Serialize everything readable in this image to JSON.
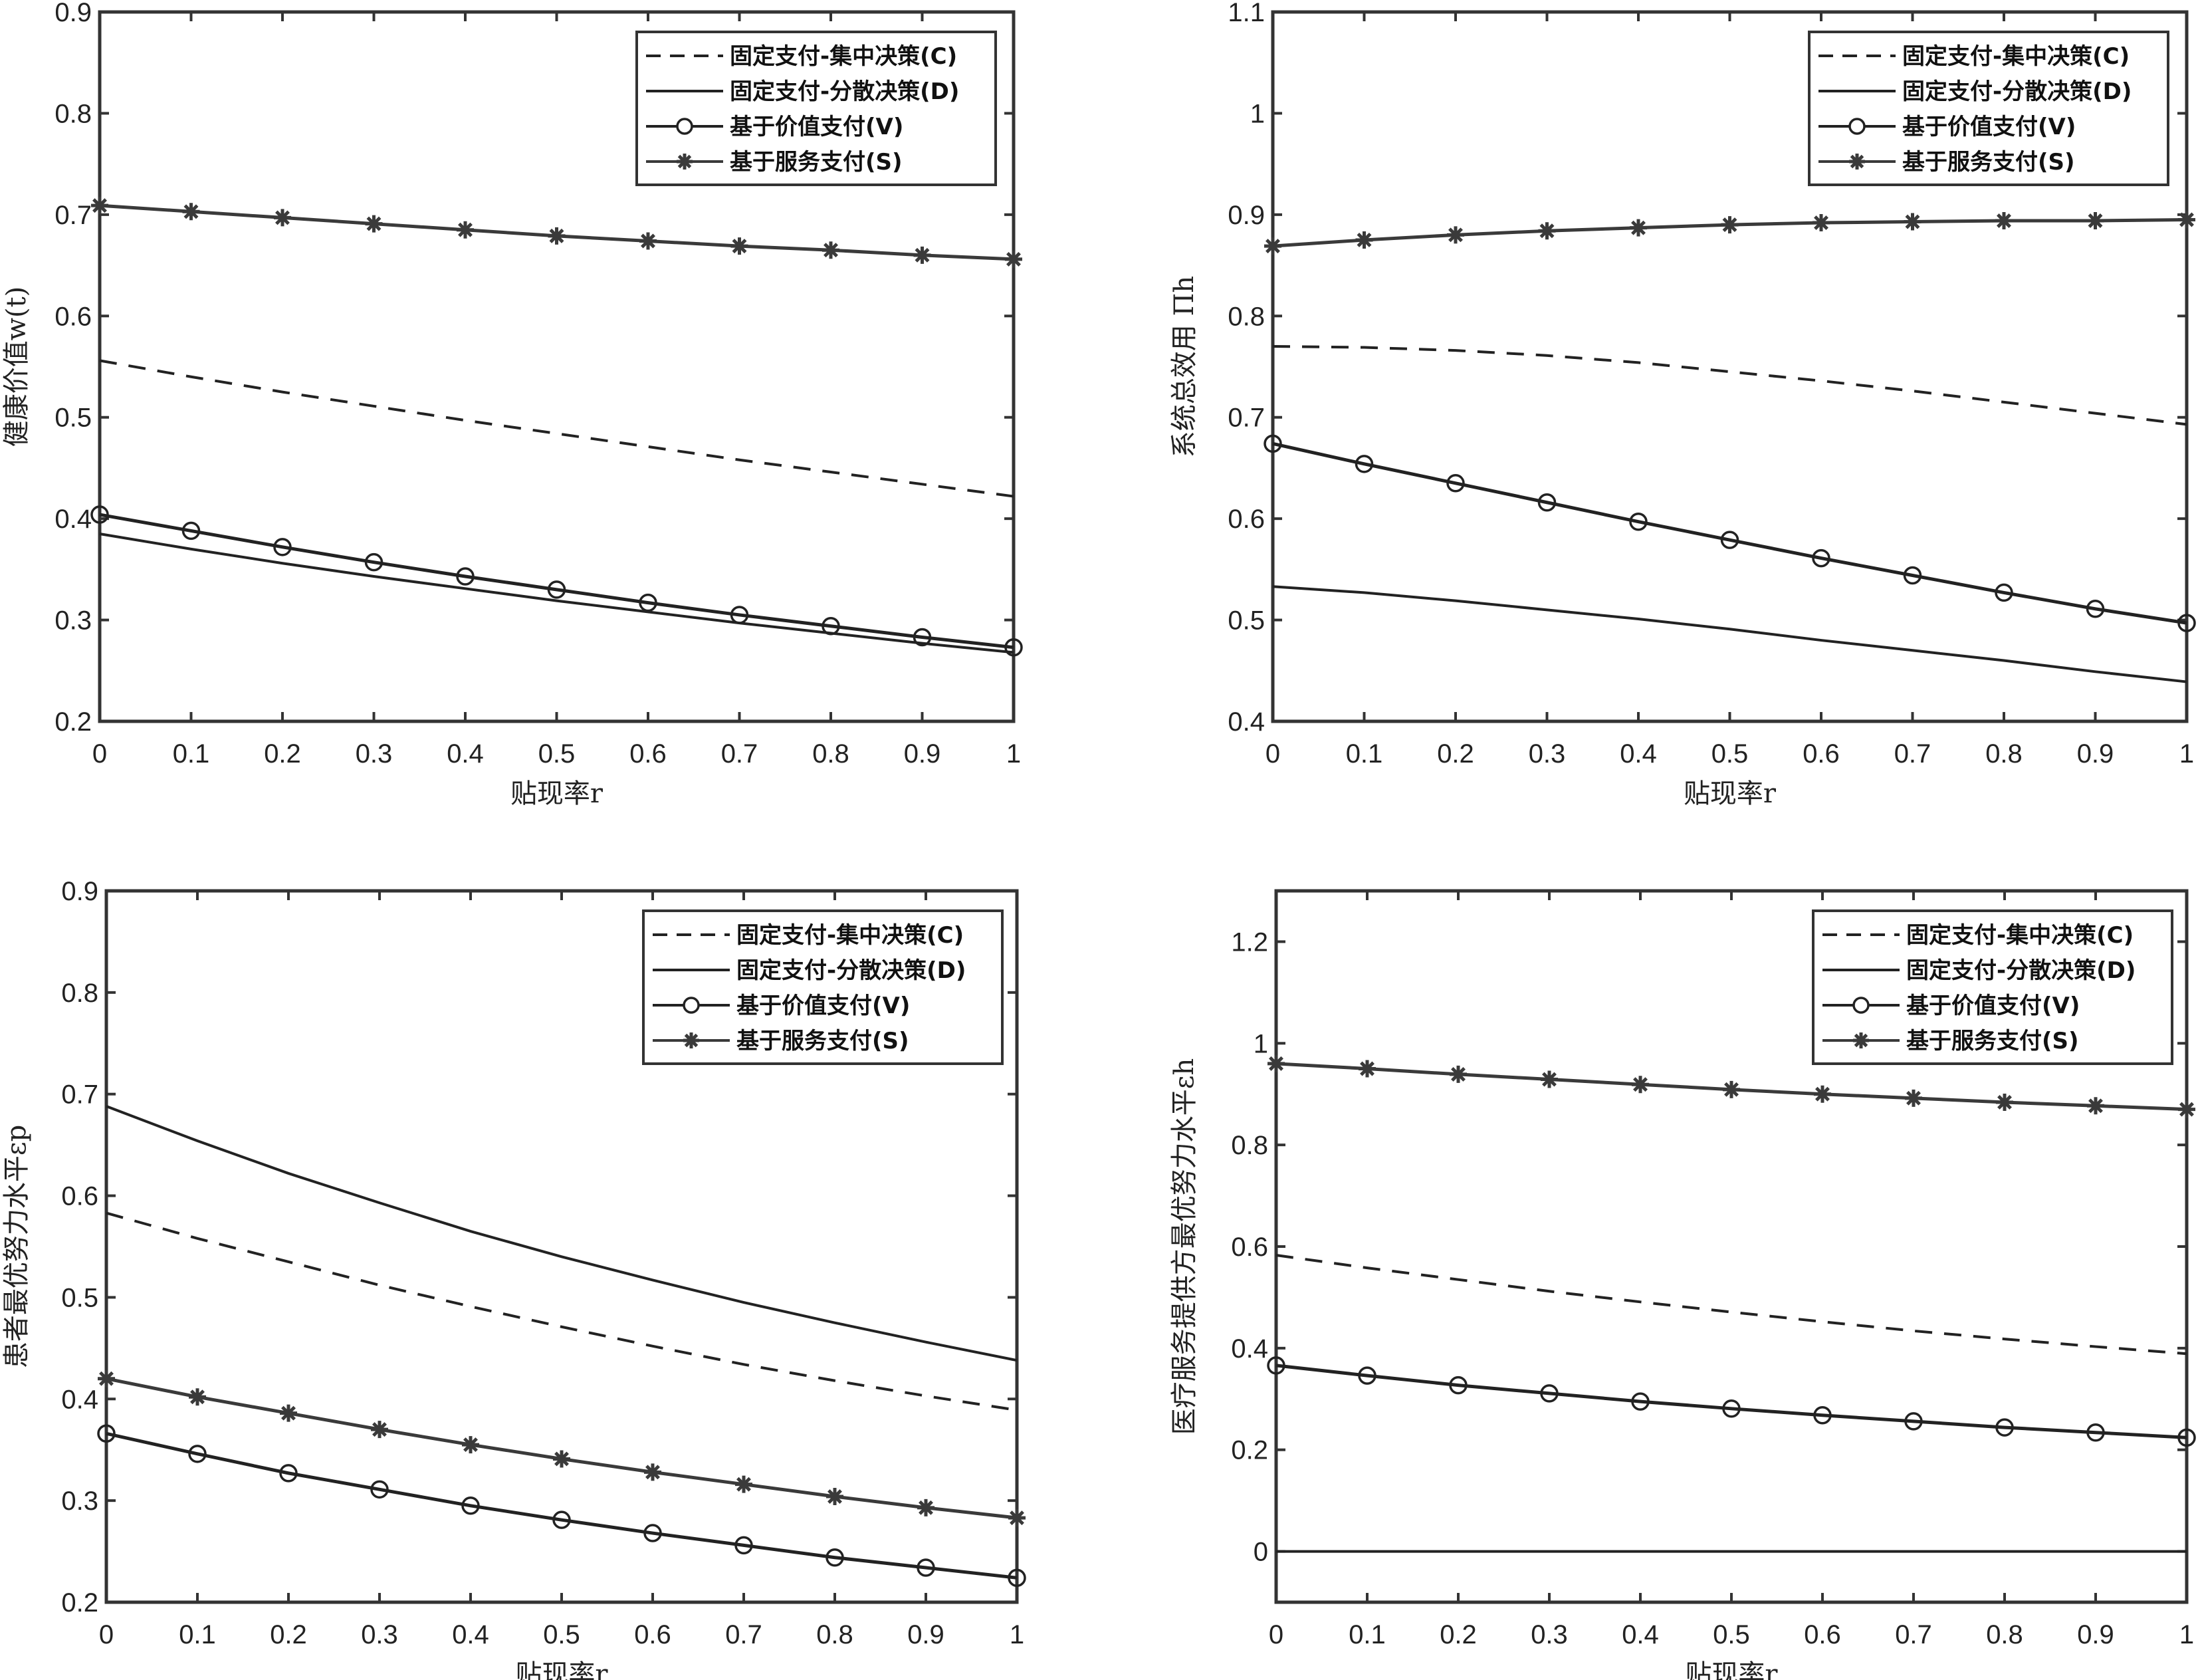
{
  "legend": [
    {
      "key": "C",
      "label": "固定支付-集中决策(C)",
      "style": "dashed",
      "marker": "none"
    },
    {
      "key": "D",
      "label": "固定支付-分散决策(D)",
      "style": "solid",
      "marker": "none"
    },
    {
      "key": "V",
      "label": "基于价值支付(V)",
      "style": "solid",
      "marker": "circle"
    },
    {
      "key": "S",
      "label": "基于服务支付(S)",
      "style": "solid",
      "marker": "star"
    }
  ],
  "colors": {
    "line": "#222222",
    "series_S": "#3a3a3a",
    "axis": "#333333"
  },
  "chart_data": [
    {
      "type": "line",
      "xlabel": "贴现率r",
      "ylabel": "健康价值w(t)",
      "x": [
        0,
        0.1,
        0.2,
        0.3,
        0.4,
        0.5,
        0.6,
        0.7,
        0.8,
        0.9,
        1
      ],
      "xticks": [
        "0",
        "0.1",
        "0.2",
        "0.3",
        "0.4",
        "0.5",
        "0.6",
        "0.7",
        "0.8",
        "0.9",
        "1"
      ],
      "ylim": [
        0.2,
        0.9
      ],
      "yticks": [
        0.2,
        0.3,
        0.4,
        0.5,
        0.6,
        0.7,
        0.8,
        0.9
      ],
      "ytick_labels": [
        "0.2",
        "0.3",
        "0.4",
        "0.5",
        "0.6",
        "0.7",
        "0.8",
        "0.9"
      ],
      "legend_position": "top-right",
      "series": [
        {
          "key": "C",
          "values": [
            0.556,
            0.54,
            0.525,
            0.511,
            0.497,
            0.484,
            0.471,
            0.458,
            0.446,
            0.434,
            0.422
          ]
        },
        {
          "key": "D",
          "values": [
            0.385,
            0.37,
            0.356,
            0.343,
            0.331,
            0.319,
            0.308,
            0.297,
            0.287,
            0.277,
            0.268
          ]
        },
        {
          "key": "V",
          "values": [
            0.404,
            0.388,
            0.372,
            0.357,
            0.343,
            0.33,
            0.317,
            0.305,
            0.294,
            0.283,
            0.273
          ]
        },
        {
          "key": "S",
          "values": [
            0.709,
            0.703,
            0.697,
            0.691,
            0.685,
            0.679,
            0.674,
            0.669,
            0.665,
            0.66,
            0.656
          ]
        }
      ]
    },
    {
      "type": "line",
      "xlabel": "贴现率r",
      "ylabel": "系统总效用 Πh",
      "x": [
        0,
        0.1,
        0.2,
        0.3,
        0.4,
        0.5,
        0.6,
        0.7,
        0.8,
        0.9,
        1
      ],
      "xticks": [
        "0",
        "0.1",
        "0.2",
        "0.3",
        "0.4",
        "0.5",
        "0.6",
        "0.7",
        "0.8",
        "0.9",
        "1"
      ],
      "ylim": [
        0.4,
        1.1
      ],
      "yticks": [
        0.4,
        0.5,
        0.6,
        0.7,
        0.8,
        0.9,
        1.0,
        1.1
      ],
      "ytick_labels": [
        "0.4",
        "0.5",
        "0.6",
        "0.7",
        "0.8",
        "0.9",
        "1",
        "1.1"
      ],
      "legend_position": "top-right",
      "series": [
        {
          "key": "C",
          "values": [
            0.77,
            0.769,
            0.766,
            0.761,
            0.754,
            0.745,
            0.736,
            0.726,
            0.715,
            0.704,
            0.693
          ]
        },
        {
          "key": "D",
          "values": [
            0.533,
            0.527,
            0.519,
            0.51,
            0.501,
            0.491,
            0.48,
            0.47,
            0.46,
            0.449,
            0.439
          ]
        },
        {
          "key": "V",
          "values": [
            0.674,
            0.654,
            0.635,
            0.616,
            0.597,
            0.579,
            0.561,
            0.544,
            0.527,
            0.511,
            0.497
          ]
        },
        {
          "key": "S",
          "values": [
            0.869,
            0.875,
            0.88,
            0.884,
            0.887,
            0.89,
            0.892,
            0.893,
            0.894,
            0.894,
            0.895
          ]
        }
      ]
    },
    {
      "type": "line",
      "xlabel": "贴现率r",
      "ylabel": "患者最优努力水平εp",
      "x": [
        0,
        0.1,
        0.2,
        0.3,
        0.4,
        0.5,
        0.6,
        0.7,
        0.8,
        0.9,
        1
      ],
      "xticks": [
        "0",
        "0.1",
        "0.2",
        "0.3",
        "0.4",
        "0.5",
        "0.6",
        "0.7",
        "0.8",
        "0.9",
        "1"
      ],
      "ylim": [
        0.2,
        0.9
      ],
      "yticks": [
        0.2,
        0.3,
        0.4,
        0.5,
        0.6,
        0.7,
        0.8,
        0.9
      ],
      "ytick_labels": [
        "0.2",
        "0.3",
        "0.4",
        "0.5",
        "0.6",
        "0.7",
        "0.8",
        "0.9"
      ],
      "legend_position": "top-right",
      "series": [
        {
          "key": "C",
          "values": [
            0.583,
            0.558,
            0.535,
            0.512,
            0.491,
            0.471,
            0.452,
            0.434,
            0.418,
            0.403,
            0.389
          ]
        },
        {
          "key": "D",
          "values": [
            0.688,
            0.654,
            0.622,
            0.593,
            0.565,
            0.54,
            0.517,
            0.495,
            0.475,
            0.456,
            0.438
          ]
        },
        {
          "key": "V",
          "values": [
            0.366,
            0.346,
            0.327,
            0.311,
            0.295,
            0.281,
            0.268,
            0.256,
            0.244,
            0.234,
            0.224
          ]
        },
        {
          "key": "S",
          "values": [
            0.42,
            0.402,
            0.386,
            0.37,
            0.355,
            0.341,
            0.328,
            0.316,
            0.304,
            0.293,
            0.283
          ]
        }
      ]
    },
    {
      "type": "line",
      "xlabel": "贴现率r",
      "ylabel": "医疗服务提供方最优努力水平εh",
      "x": [
        0,
        0.1,
        0.2,
        0.3,
        0.4,
        0.5,
        0.6,
        0.7,
        0.8,
        0.9,
        1
      ],
      "xticks": [
        "0",
        "0.1",
        "0.2",
        "0.3",
        "0.4",
        "0.5",
        "0.6",
        "0.7",
        "0.8",
        "0.9",
        "1"
      ],
      "ylim": [
        -0.1,
        1.3
      ],
      "yticks": [
        0,
        0.2,
        0.4,
        0.6,
        0.8,
        1.0,
        1.2
      ],
      "ytick_labels": [
        "0",
        "0.2",
        "0.4",
        "0.6",
        "0.8",
        "1",
        "1.2"
      ],
      "legend_position": "top-right",
      "series": [
        {
          "key": "C",
          "values": [
            0.583,
            0.558,
            0.535,
            0.512,
            0.491,
            0.471,
            0.452,
            0.434,
            0.418,
            0.403,
            0.389
          ]
        },
        {
          "key": "D",
          "values": [
            0,
            0,
            0,
            0,
            0,
            0,
            0,
            0,
            0,
            0,
            0
          ]
        },
        {
          "key": "V",
          "values": [
            0.366,
            0.346,
            0.327,
            0.311,
            0.295,
            0.281,
            0.268,
            0.256,
            0.244,
            0.234,
            0.224
          ]
        },
        {
          "key": "S",
          "values": [
            0.96,
            0.95,
            0.939,
            0.929,
            0.919,
            0.909,
            0.9,
            0.892,
            0.884,
            0.877,
            0.87
          ]
        }
      ]
    }
  ]
}
